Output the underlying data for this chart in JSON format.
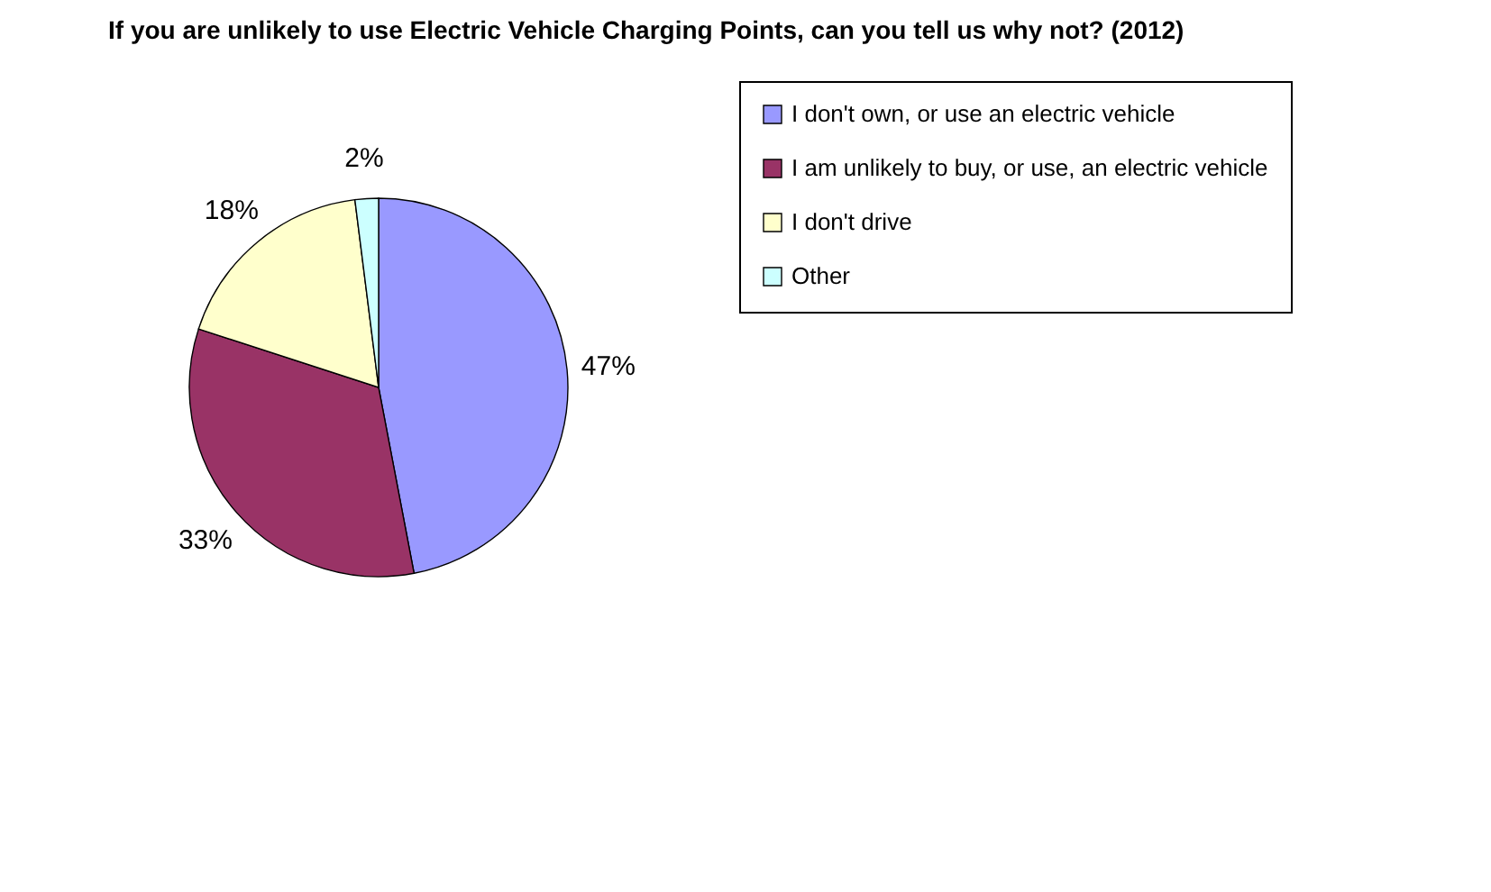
{
  "chart_data": {
    "type": "pie",
    "title": "If you are unlikely to use Electric Vehicle Charging Points, can you tell us why not? (2012)",
    "categories": [
      "I don't own, or use an electric vehicle",
      "I am unlikely to buy, or use, an electric vehicle",
      "I don't drive",
      "Other"
    ],
    "values": [
      47,
      33,
      18,
      2
    ],
    "colors": [
      "#9999ff",
      "#993366",
      "#ffffcc",
      "#ccffff"
    ],
    "value_labels": [
      "47%",
      "33%",
      "18%",
      "2%"
    ],
    "legend": "right"
  }
}
